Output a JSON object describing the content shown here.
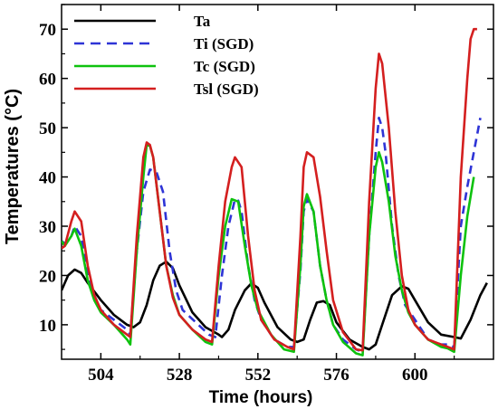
{
  "chart_data": {
    "type": "line",
    "xlabel": "Time (hours)",
    "ylabel": "Temperatures (°C)",
    "xlim": [
      492,
      624
    ],
    "ylim": [
      3,
      75
    ],
    "xticks": [
      504,
      528,
      552,
      576,
      600
    ],
    "yticks": [
      10,
      20,
      30,
      40,
      50,
      60,
      70
    ],
    "grid": false,
    "legend_placement": "top-left",
    "series": [
      {
        "name": "Ta",
        "color": "#000000",
        "dash": "solid",
        "points": [
          [
            492,
            17
          ],
          [
            494,
            20
          ],
          [
            496,
            21.2
          ],
          [
            498,
            20.5
          ],
          [
            500,
            18.5
          ],
          [
            504,
            15
          ],
          [
            508,
            12
          ],
          [
            512,
            10
          ],
          [
            514,
            9.5
          ],
          [
            516,
            10.5
          ],
          [
            518,
            14
          ],
          [
            520,
            19
          ],
          [
            522,
            22
          ],
          [
            524,
            22.8
          ],
          [
            526,
            21.5
          ],
          [
            528,
            18
          ],
          [
            532,
            12.5
          ],
          [
            536,
            9.5
          ],
          [
            540,
            8
          ],
          [
            541,
            7.5
          ],
          [
            543,
            9
          ],
          [
            545,
            13
          ],
          [
            548,
            17
          ],
          [
            550,
            18.4
          ],
          [
            552,
            17.5
          ],
          [
            554,
            14.5
          ],
          [
            558,
            9.5
          ],
          [
            562,
            7
          ],
          [
            564,
            6.5
          ],
          [
            566,
            7
          ],
          [
            568,
            11
          ],
          [
            570,
            14.5
          ],
          [
            572,
            14.8
          ],
          [
            574,
            14
          ],
          [
            576,
            10.5
          ],
          [
            580,
            7
          ],
          [
            584,
            5.5
          ],
          [
            586,
            5
          ],
          [
            588,
            6
          ],
          [
            590,
            10
          ],
          [
            593,
            16
          ],
          [
            596,
            17.8
          ],
          [
            598,
            17.3
          ],
          [
            600,
            15
          ],
          [
            604,
            10.5
          ],
          [
            608,
            8
          ],
          [
            612,
            7.5
          ],
          [
            614,
            7.2
          ],
          [
            617,
            11
          ],
          [
            620,
            16
          ],
          [
            622,
            18.5
          ]
        ]
      },
      {
        "name": "Ti (SGD)",
        "color": "#2e34d6",
        "dash": "dash",
        "points": [
          [
            492,
            27
          ],
          [
            493,
            26.5
          ],
          [
            495,
            28
          ],
          [
            496,
            30
          ],
          [
            498,
            28
          ],
          [
            500,
            20
          ],
          [
            502,
            16
          ],
          [
            504,
            13
          ],
          [
            508,
            11
          ],
          [
            512,
            9
          ],
          [
            513,
            8
          ],
          [
            515,
            25
          ],
          [
            517,
            37
          ],
          [
            519,
            41.5
          ],
          [
            521,
            41
          ],
          [
            523,
            37
          ],
          [
            525,
            25
          ],
          [
            527,
            17
          ],
          [
            529,
            13
          ],
          [
            533,
            10.5
          ],
          [
            537,
            8
          ],
          [
            539,
            7.5
          ],
          [
            541,
            20
          ],
          [
            543,
            30
          ],
          [
            545,
            35.5
          ],
          [
            546,
            35.2
          ],
          [
            547,
            33
          ],
          [
            549,
            22
          ],
          [
            551,
            15
          ],
          [
            553,
            11
          ],
          [
            557,
            7
          ],
          [
            561,
            5.5
          ],
          [
            563,
            5.5
          ],
          [
            565,
            21
          ],
          [
            566,
            33
          ],
          [
            567,
            35.5
          ],
          [
            569,
            33
          ],
          [
            571,
            22
          ],
          [
            573,
            15
          ],
          [
            575,
            10
          ],
          [
            578,
            7
          ],
          [
            582,
            5
          ],
          [
            584,
            4.5
          ],
          [
            586,
            28
          ],
          [
            588,
            45
          ],
          [
            589,
            52
          ],
          [
            590,
            50
          ],
          [
            591,
            45
          ],
          [
            593,
            30
          ],
          [
            595,
            20
          ],
          [
            597,
            14
          ],
          [
            600,
            11
          ],
          [
            604,
            7
          ],
          [
            608,
            6
          ],
          [
            610,
            6
          ],
          [
            612,
            5.5
          ],
          [
            614,
            30
          ],
          [
            616,
            38
          ],
          [
            618,
            45
          ],
          [
            620,
            52
          ]
        ]
      },
      {
        "name": "Tc (SGD)",
        "color": "#0ec20e",
        "dash": "solid",
        "points": [
          [
            492,
            27
          ],
          [
            493,
            26
          ],
          [
            495,
            28
          ],
          [
            496,
            29.5
          ],
          [
            498,
            26
          ],
          [
            500,
            19
          ],
          [
            502,
            15
          ],
          [
            504,
            12.5
          ],
          [
            508,
            10
          ],
          [
            512,
            7
          ],
          [
            513,
            6
          ],
          [
            515,
            25
          ],
          [
            517,
            40
          ],
          [
            518,
            46.5
          ],
          [
            519,
            46.3
          ],
          [
            520,
            44
          ],
          [
            522,
            33
          ],
          [
            524,
            22
          ],
          [
            526,
            16
          ],
          [
            528,
            12
          ],
          [
            532,
            9
          ],
          [
            536,
            6.5
          ],
          [
            538,
            6
          ],
          [
            540,
            20
          ],
          [
            542,
            30
          ],
          [
            544,
            35.5
          ],
          [
            546,
            35
          ],
          [
            548,
            26
          ],
          [
            550,
            18
          ],
          [
            552,
            13
          ],
          [
            556,
            8
          ],
          [
            560,
            5
          ],
          [
            563,
            4.5
          ],
          [
            565,
            22
          ],
          [
            566,
            34
          ],
          [
            567,
            36.5
          ],
          [
            569,
            33
          ],
          [
            571,
            22
          ],
          [
            573,
            15
          ],
          [
            575,
            10
          ],
          [
            578,
            6.5
          ],
          [
            582,
            4.2
          ],
          [
            584,
            3.8
          ],
          [
            586,
            28
          ],
          [
            588,
            42
          ],
          [
            589,
            45
          ],
          [
            590,
            43
          ],
          [
            592,
            35
          ],
          [
            594,
            24
          ],
          [
            596,
            17
          ],
          [
            598,
            12.5
          ],
          [
            600,
            10
          ],
          [
            604,
            7
          ],
          [
            608,
            5.5
          ],
          [
            610,
            5.2
          ],
          [
            612,
            4.5
          ],
          [
            614,
            20
          ],
          [
            616,
            32
          ],
          [
            618,
            40
          ]
        ]
      },
      {
        "name": "Tsl (SGD)",
        "color": "#d41f1f",
        "dash": "solid",
        "points": [
          [
            492,
            25.5
          ],
          [
            493,
            26
          ],
          [
            495,
            31
          ],
          [
            496,
            33
          ],
          [
            498,
            31
          ],
          [
            500,
            22
          ],
          [
            502,
            16
          ],
          [
            504,
            13
          ],
          [
            508,
            10
          ],
          [
            512,
            8
          ],
          [
            513,
            7.5
          ],
          [
            515,
            28
          ],
          [
            517,
            44
          ],
          [
            518,
            47
          ],
          [
            519,
            46.5
          ],
          [
            520,
            44
          ],
          [
            522,
            33
          ],
          [
            524,
            22
          ],
          [
            526,
            15.5
          ],
          [
            528,
            12
          ],
          [
            532,
            9
          ],
          [
            536,
            7
          ],
          [
            538,
            6.5
          ],
          [
            540,
            22
          ],
          [
            542,
            35
          ],
          [
            544,
            42
          ],
          [
            545,
            44
          ],
          [
            547,
            42
          ],
          [
            549,
            28
          ],
          [
            551,
            17
          ],
          [
            553,
            11
          ],
          [
            557,
            7
          ],
          [
            561,
            5.5
          ],
          [
            563,
            5
          ],
          [
            565,
            28
          ],
          [
            566,
            42
          ],
          [
            567,
            45
          ],
          [
            569,
            44
          ],
          [
            571,
            36
          ],
          [
            573,
            25
          ],
          [
            575,
            15
          ],
          [
            578,
            8.5
          ],
          [
            582,
            5
          ],
          [
            584,
            4.8
          ],
          [
            586,
            35
          ],
          [
            588,
            58
          ],
          [
            589,
            65
          ],
          [
            590,
            63
          ],
          [
            592,
            50
          ],
          [
            594,
            33
          ],
          [
            596,
            20
          ],
          [
            598,
            13
          ],
          [
            600,
            10
          ],
          [
            604,
            7
          ],
          [
            608,
            6
          ],
          [
            610,
            5.5
          ],
          [
            612,
            5
          ],
          [
            614,
            40
          ],
          [
            616,
            60
          ],
          [
            617,
            68
          ],
          [
            618,
            70
          ],
          [
            619,
            70
          ]
        ]
      }
    ]
  }
}
